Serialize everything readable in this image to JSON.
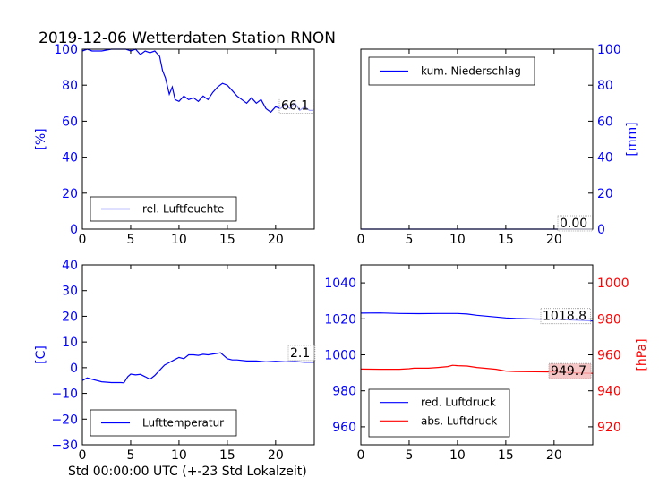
{
  "title": "2019-12-06 Wetterdaten Station RNON",
  "xlabel": "Std 00:00:00 UTC (+-23 Std Lokalzeit)",
  "colors": {
    "blue": "#0000ff",
    "red": "#ff0000",
    "box_red": "#f4b6b6"
  },
  "chart_data": [
    {
      "id": "humidity",
      "type": "line",
      "ylabel": "[%]",
      "ylabel_color": "#0000ff",
      "tick_color": "#0000ff",
      "xlim": [
        0,
        24
      ],
      "ylim": [
        0,
        100
      ],
      "xticks": [
        0,
        5,
        10,
        15,
        20
      ],
      "yticks": [
        0,
        20,
        40,
        60,
        80,
        100
      ],
      "legend": {
        "label": "rel. Luftfeuchte",
        "placement": "lower-left"
      },
      "last_value_label": "66.1",
      "series": [
        {
          "name": "rel. Luftfeuchte",
          "color": "#0000ff",
          "x": [
            0,
            0.5,
            1,
            2,
            3,
            4,
            4.5,
            5,
            5.5,
            6,
            6.5,
            7,
            7.5,
            8,
            8.3,
            8.6,
            9,
            9.3,
            9.6,
            10,
            10.5,
            11,
            11.5,
            12,
            12.5,
            13,
            13.5,
            14,
            14.5,
            15,
            15.5,
            16,
            16.5,
            17,
            17.5,
            18,
            18.5,
            19,
            19.5,
            20,
            20.5,
            21,
            21.5,
            22,
            22.5,
            23,
            23.5,
            24
          ],
          "y": [
            99,
            100,
            99,
            99,
            100,
            100,
            100,
            99,
            100,
            97,
            99,
            98,
            99,
            96,
            88,
            84,
            75,
            79,
            72,
            71,
            74,
            72,
            73,
            71,
            74,
            72,
            76,
            79,
            81,
            80,
            77,
            74,
            72,
            70,
            73,
            70,
            72,
            67,
            65,
            68,
            67,
            69,
            67,
            70,
            66,
            68,
            66,
            66
          ]
        }
      ]
    },
    {
      "id": "precip",
      "type": "line",
      "ylabel": "[mm]",
      "ylabel_color": "#0000ff",
      "tick_color": "#0000ff",
      "xlim": [
        0,
        24
      ],
      "ylim": [
        0,
        100
      ],
      "xticks": [
        0,
        5,
        10,
        15,
        20
      ],
      "yticks": [
        0,
        20,
        40,
        60,
        80,
        100
      ],
      "legend": {
        "label": "kum. Niederschlag",
        "placement": "upper-left"
      },
      "last_value_label": "0.00",
      "series": [
        {
          "name": "kum. Niederschlag",
          "color": "#0000ff",
          "x": [
            0,
            24
          ],
          "y": [
            0,
            0
          ]
        }
      ]
    },
    {
      "id": "temperature",
      "type": "line",
      "ylabel": "[C]",
      "ylabel_color": "#0000ff",
      "tick_color": "#0000ff",
      "xlim": [
        0,
        24
      ],
      "ylim": [
        -30,
        40
      ],
      "xticks": [
        0,
        5,
        10,
        15,
        20
      ],
      "yticks": [
        -30,
        -20,
        -10,
        0,
        10,
        20,
        30,
        40
      ],
      "legend": {
        "label": "Lufttemperatur",
        "placement": "lower-left"
      },
      "last_value_label": "2.1",
      "series": [
        {
          "name": "Lufttemperatur",
          "color": "#0000ff",
          "x": [
            0,
            0.5,
            1,
            2,
            3,
            4,
            4.3,
            4.7,
            5,
            5.5,
            6,
            6.5,
            7,
            7.5,
            8,
            8.5,
            9,
            9.5,
            10,
            10.5,
            11,
            11.5,
            12,
            12.5,
            13,
            13.5,
            14,
            14.3,
            14.7,
            15,
            15.5,
            16,
            17,
            18,
            19,
            20,
            21,
            22,
            23,
            24
          ],
          "y": [
            -5,
            -4,
            -4.5,
            -5.5,
            -5.8,
            -5.8,
            -5.9,
            -3.5,
            -2.5,
            -2.8,
            -2.6,
            -3.5,
            -4.5,
            -3,
            -1,
            1,
            2,
            3,
            4,
            3.5,
            5,
            5,
            4.8,
            5.2,
            5,
            5.3,
            5.6,
            5.8,
            4.5,
            3.5,
            3,
            3,
            2.6,
            2.6,
            2.3,
            2.5,
            2.3,
            2.4,
            2.1,
            2.1
          ]
        }
      ]
    },
    {
      "id": "pressure",
      "type": "line",
      "xlim": [
        0,
        24
      ],
      "xticks": [
        0,
        5,
        10,
        15,
        20
      ],
      "left_axis": {
        "ylim": [
          950,
          1050
        ],
        "yticks": [
          960,
          980,
          1000,
          1020,
          1040
        ],
        "tick_color": "#0000ff"
      },
      "right_axis": {
        "ylim": [
          910,
          1010
        ],
        "yticks": [
          920,
          940,
          960,
          980,
          1000
        ],
        "tick_color": "#ff0000",
        "ylabel": "[hPa]",
        "ylabel_color": "#ff0000"
      },
      "legend": {
        "labels": [
          "red. Luftdruck",
          "abs. Luftdruck"
        ],
        "placement": "lower-left"
      },
      "last_value_label_left": "1018.8",
      "last_value_label_right": "949.7",
      "series": [
        {
          "name": "red. Luftdruck",
          "color": "#0000ff",
          "axis": "left",
          "x": [
            0,
            2,
            4,
            6,
            8,
            10,
            11,
            12,
            13,
            14,
            15,
            16,
            18,
            20,
            22,
            24
          ],
          "y": [
            1023.2,
            1023.3,
            1023.0,
            1022.9,
            1023.0,
            1023.0,
            1022.7,
            1022.0,
            1021.5,
            1021.0,
            1020.5,
            1020.2,
            1019.9,
            1019.8,
            1019.3,
            1018.8
          ]
        },
        {
          "name": "abs. Luftdruck",
          "color": "#ff0000",
          "axis": "right",
          "x": [
            0,
            2,
            4,
            5,
            5.5,
            6,
            7,
            8,
            9,
            9.5,
            10,
            11,
            12,
            13,
            14,
            15,
            16,
            18,
            20,
            22,
            24
          ],
          "y": [
            952.1,
            952.0,
            952.0,
            952.3,
            952.6,
            952.6,
            952.6,
            953.0,
            953.5,
            954.2,
            954.0,
            953.8,
            953.0,
            952.5,
            952.0,
            951.0,
            950.7,
            950.6,
            950.5,
            950.0,
            949.7
          ]
        }
      ]
    }
  ]
}
